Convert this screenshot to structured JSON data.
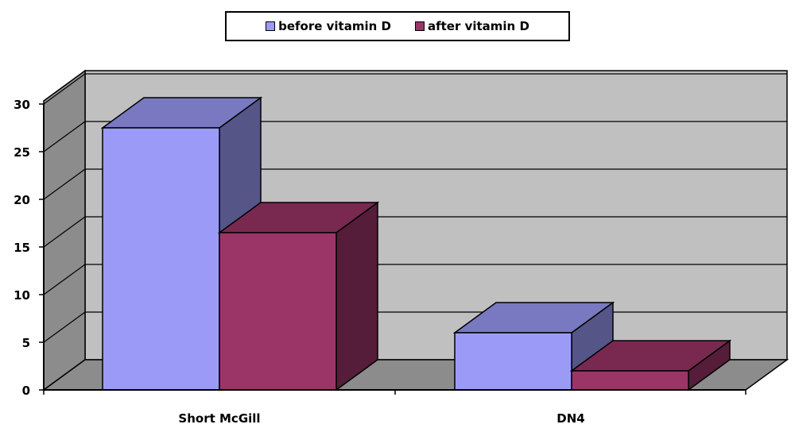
{
  "chart_data": {
    "type": "bar",
    "categories": [
      "Short McGill",
      "DN4"
    ],
    "series": [
      {
        "name": "before vitamin D",
        "values": [
          27.5,
          6
        ],
        "color": "#9b9bf7"
      },
      {
        "name": "after vitamin D",
        "values": [
          16.5,
          2
        ],
        "color": "#9b3567"
      }
    ],
    "yticks": [
      "0",
      "5",
      "10",
      "15",
      "20",
      "25",
      "30"
    ],
    "ylim": [
      0,
      30
    ],
    "grid": true,
    "three_d": true,
    "legend_position": "top"
  }
}
